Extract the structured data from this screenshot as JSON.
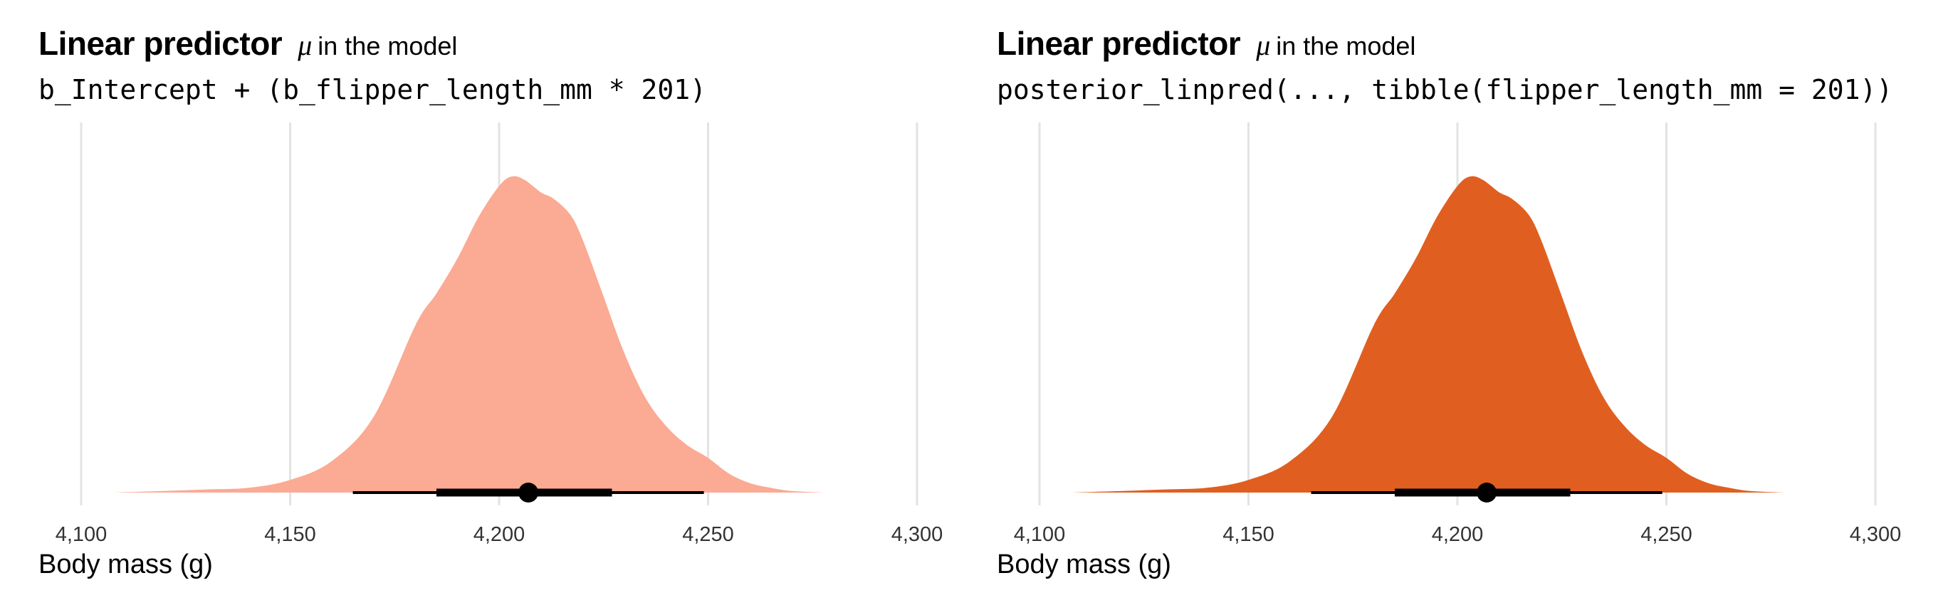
{
  "chart_data": [
    {
      "type": "area",
      "title": "Linear predictor",
      "title_symbol": "μ",
      "title_suffix": "in the model",
      "subtitle": "b_Intercept + (b_flipper_length_mm * 201)",
      "xlabel": "Body mass (g)",
      "ylabel": "",
      "xlim": [
        4100,
        4300
      ],
      "xticks": [
        4100,
        4150,
        4200,
        4250,
        4300
      ],
      "xtick_labels": [
        "4,100",
        "4,150",
        "4,200",
        "4,250",
        "4,300"
      ],
      "grid": "vertical major gridlines",
      "fill_color": "#FBAA93",
      "x": [
        4108,
        4120,
        4130,
        4140,
        4150,
        4160,
        4170,
        4180,
        4185,
        4190,
        4195,
        4200,
        4203,
        4206,
        4210,
        4213,
        4217,
        4220,
        4225,
        4230,
        4235,
        4240,
        4245,
        4250,
        4255,
        4260,
        4265,
        4270,
        4278
      ],
      "density": [
        0.0,
        0.005,
        0.01,
        0.015,
        0.04,
        0.1,
        0.24,
        0.53,
        0.63,
        0.74,
        0.87,
        0.97,
        1.0,
        0.99,
        0.95,
        0.93,
        0.88,
        0.8,
        0.62,
        0.44,
        0.3,
        0.21,
        0.15,
        0.11,
        0.06,
        0.03,
        0.015,
        0.005,
        0.0
      ],
      "point_interval": {
        "point": 4207,
        "inner": [
          4185,
          4227
        ],
        "outer": [
          4165,
          4249
        ]
      }
    },
    {
      "type": "area",
      "title": "Linear predictor",
      "title_symbol": "μ",
      "title_suffix": "in the model",
      "subtitle": "posterior_linpred(..., tibble(flipper_length_mm = 201))",
      "xlabel": "Body mass (g)",
      "ylabel": "",
      "xlim": [
        4100,
        4300
      ],
      "xticks": [
        4100,
        4150,
        4200,
        4250,
        4300
      ],
      "xtick_labels": [
        "4,100",
        "4,150",
        "4,200",
        "4,250",
        "4,300"
      ],
      "grid": "vertical major gridlines",
      "fill_color": "#E05F20",
      "x": [
        4108,
        4120,
        4130,
        4140,
        4150,
        4160,
        4170,
        4180,
        4185,
        4190,
        4195,
        4200,
        4203,
        4206,
        4210,
        4213,
        4217,
        4220,
        4225,
        4230,
        4235,
        4240,
        4245,
        4250,
        4255,
        4260,
        4265,
        4270,
        4278
      ],
      "density": [
        0.0,
        0.005,
        0.01,
        0.015,
        0.04,
        0.1,
        0.24,
        0.53,
        0.63,
        0.74,
        0.87,
        0.97,
        1.0,
        0.99,
        0.95,
        0.93,
        0.88,
        0.8,
        0.62,
        0.44,
        0.3,
        0.21,
        0.15,
        0.11,
        0.06,
        0.03,
        0.015,
        0.005,
        0.0
      ],
      "point_interval": {
        "point": 4207,
        "inner": [
          4185,
          4227
        ],
        "outer": [
          4165,
          4249
        ]
      }
    }
  ]
}
